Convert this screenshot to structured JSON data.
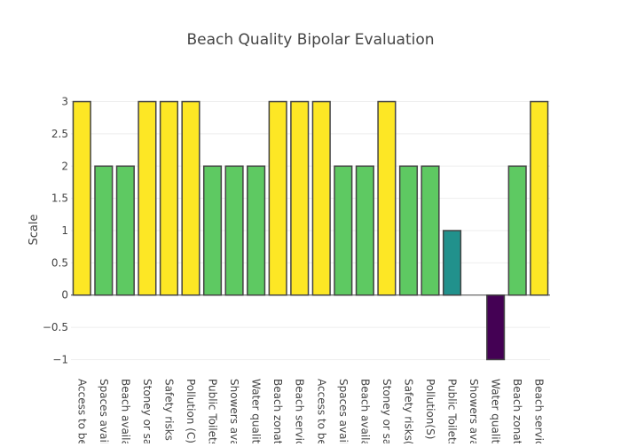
{
  "chart_data": {
    "type": "bar",
    "title": "Beach Quality Bipolar Evaluation",
    "xlabel": "",
    "ylabel": "Scale",
    "ylim": [
      -1.2,
      3.2
    ],
    "yticks": [
      3,
      2.5,
      2,
      1.5,
      1,
      0.5,
      0,
      -0.5,
      -1
    ],
    "ytick_labels": [
      "3",
      "2.5",
      "2",
      "1.5",
      "1",
      "0.5",
      "0",
      "−0.5",
      "−1"
    ],
    "grid": true,
    "categories": [
      "Access to beach (C)",
      "Spaces available (C)",
      "Beach available (C)",
      "Stoney or sandy (C)",
      "Safety risks (C)",
      "Pollution (C)",
      "Public Toilets (C)",
      "Showers available (C)",
      "Water quality (C)",
      "Beach zonation (C)",
      "Beach services (C)",
      "Access to beach (S)",
      "Spaces available (S)",
      "Beach available (S)",
      "Stoney or sandy (S)",
      "Safety risks(S)",
      "Pollution(S)",
      "Public Toilets (S)",
      "Showers available (S)",
      "Water quality (S)",
      "Beach zonation (S)",
      "Beach services (S)"
    ],
    "category_labels_visible": [
      "Access to bea",
      "Spaces availa",
      "Beach availab",
      "Stoney or san",
      "Safety risks (C",
      "Pollution (C)",
      "Public Toilets",
      "Showers avai",
      "Water quality",
      "Beach zonatio",
      "Beach service",
      "Access to bea",
      "Spaces availa",
      "Beach availab",
      "Stoney or san",
      "Safety risks(S",
      "Pollution(S)",
      "Public Toilets",
      "Showers avail",
      "Water quality",
      "Beach zonatio",
      "Beach service"
    ],
    "values": [
      3,
      2,
      2,
      3,
      3,
      3,
      2,
      2,
      2,
      3,
      3,
      3,
      2,
      2,
      3,
      2,
      2,
      1,
      0,
      -1,
      2,
      3
    ],
    "color_scale": {
      "3": "#fde725",
      "2": "#5ec962",
      "1": "#21918c",
      "0": "#3b528b",
      "-1": "#440154"
    }
  }
}
